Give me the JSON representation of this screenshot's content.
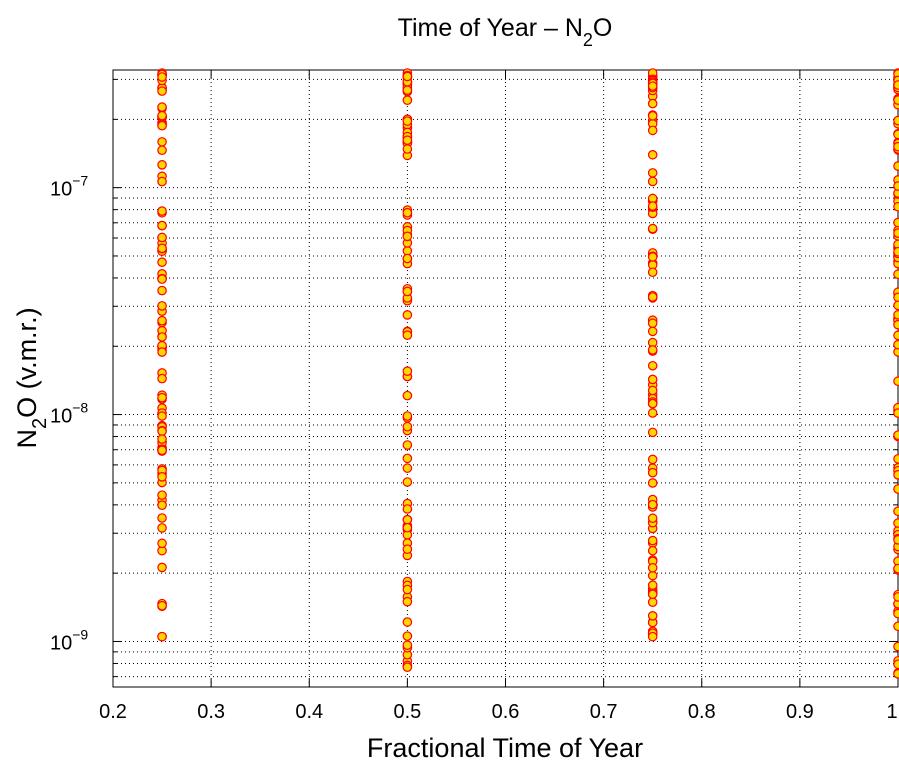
{
  "chart_data": {
    "type": "scatter",
    "title": "Time of Year – N₂O",
    "title_main": "Time of Year – N",
    "title_sub": "2",
    "title_tail": "O",
    "xlabel": "Fractional Time of Year",
    "ylabel_main": "N",
    "ylabel_sub": "2",
    "ylabel_tail": "O (v.m.r.)",
    "xlim": [
      0.2,
      1.0
    ],
    "ylim": [
      6.3e-10,
      3.3e-07
    ],
    "yscale": "log",
    "grid": true,
    "x_ticks": [
      "0.2",
      "0.3",
      "0.4",
      "0.5",
      "0.6",
      "0.7",
      "0.8",
      "0.9",
      "1"
    ],
    "x_tick_values": [
      0.2,
      0.3,
      0.4,
      0.5,
      0.6,
      0.7,
      0.8,
      0.9,
      1.0
    ],
    "y_ticks": [
      {
        "base": "10",
        "exp": "−9",
        "value": 1e-09
      },
      {
        "base": "10",
        "exp": "−8",
        "value": 1e-08
      },
      {
        "base": "10",
        "exp": "−7",
        "value": 1e-07
      }
    ],
    "marker": {
      "face": "#FFD700",
      "edge": "#FF0000",
      "shape": "circle"
    },
    "series": [
      {
        "x": 0.25,
        "y_range": [
          1.05e-09,
          3.2e-07
        ]
      },
      {
        "x": 0.5,
        "y_range": [
          7.7e-10,
          3.2e-07
        ]
      },
      {
        "x": 0.75,
        "y_range": [
          1.05e-09,
          3.2e-07
        ]
      },
      {
        "x": 1.0,
        "y_range": [
          7.2e-10,
          3.2e-07
        ]
      }
    ],
    "points_per_series": 80
  }
}
